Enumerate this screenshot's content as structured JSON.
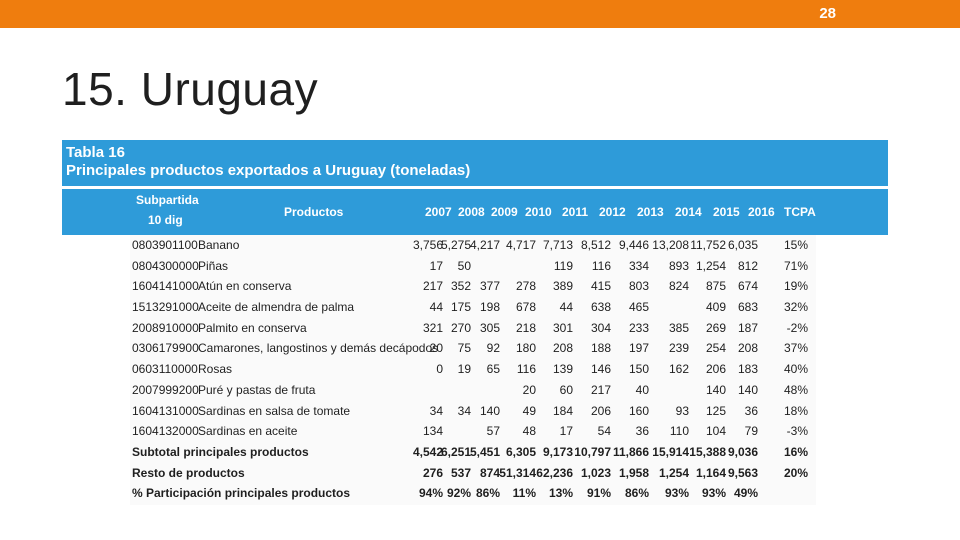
{
  "page": {
    "number": "28",
    "title": "15. Uruguay"
  },
  "table": {
    "label": "Tabla 16",
    "caption": "Principales productos exportados a Uruguay (toneladas)",
    "headers": {
      "subpartida_1": "Subpartida",
      "subpartida_2": "10 dig",
      "productos": "Productos",
      "y2007": "2007",
      "y2008": "2008",
      "y2009": "2009",
      "y2010": "2010",
      "y2011": "2011",
      "y2012": "2012",
      "y2013": "2013",
      "y2014": "2014",
      "y2015": "2015",
      "y2016": "2016",
      "tcpa": "TCPA"
    },
    "rows": [
      {
        "code": "0803901100",
        "product": "Banano",
        "values": [
          "3,756",
          "5,275",
          "4,217",
          "4,717",
          "7,713",
          "8,512",
          "9,446",
          "13,208",
          "11,752",
          "6,035"
        ],
        "tcpa": "15%"
      },
      {
        "code": "0804300000",
        "product": "Piñas",
        "values": [
          "17",
          "50",
          "",
          "",
          "119",
          "116",
          "334",
          "893",
          "1,254",
          "812"
        ],
        "tcpa": "71%"
      },
      {
        "code": "1604141000",
        "product": "Atún en conserva",
        "values": [
          "217",
          "352",
          "377",
          "278",
          "389",
          "415",
          "803",
          "824",
          "875",
          "674"
        ],
        "tcpa": "19%"
      },
      {
        "code": "1513291000",
        "product": "Aceite de almendra de palma",
        "values": [
          "44",
          "175",
          "198",
          "678",
          "44",
          "638",
          "465",
          "",
          "409",
          "683"
        ],
        "tcpa": "32%"
      },
      {
        "code": "2008910000",
        "product": "Palmito en conserva",
        "values": [
          "321",
          "270",
          "305",
          "218",
          "301",
          "304",
          "233",
          "385",
          "269",
          "187"
        ],
        "tcpa": "-2%"
      },
      {
        "code": "0306179900",
        "product": "Camarones, langostinos y demás decápodos",
        "values": [
          "20",
          "75",
          "92",
          "180",
          "208",
          "188",
          "197",
          "239",
          "254",
          "208"
        ],
        "tcpa": "37%"
      },
      {
        "code": "0603110000",
        "product": "Rosas",
        "values": [
          "0",
          "19",
          "65",
          "116",
          "139",
          "146",
          "150",
          "162",
          "206",
          "183"
        ],
        "tcpa": "40%"
      },
      {
        "code": "2007999200",
        "product": "Puré y pastas de fruta",
        "values": [
          "",
          "",
          "",
          "20",
          "60",
          "217",
          "40",
          "",
          "140",
          "140"
        ],
        "tcpa": "48%"
      },
      {
        "code": "1604131000",
        "product": "Sardinas en salsa de tomate",
        "values": [
          "34",
          "34",
          "140",
          "49",
          "184",
          "206",
          "160",
          "93",
          "125",
          "36"
        ],
        "tcpa": "18%"
      },
      {
        "code": "1604132000",
        "product": "Sardinas en aceite",
        "values": [
          "134",
          "",
          "57",
          "48",
          "17",
          "54",
          "36",
          "110",
          "104",
          "79"
        ],
        "tcpa": "-3%"
      }
    ],
    "summary": [
      {
        "label": "Subtotal principales productos",
        "values": [
          "4,542",
          "6,251",
          "5,451",
          "6,305",
          "9,173",
          "10,797",
          "11,866",
          "15,914",
          "15,388",
          "9,036"
        ],
        "tcpa": "16%"
      },
      {
        "label": "Resto de productos",
        "values": [
          "276",
          "537",
          "874",
          "51,314",
          "62,236",
          "1,023",
          "1,958",
          "1,254",
          "1,164",
          "9,563"
        ],
        "tcpa": "20%"
      },
      {
        "label": "% Participación principales productos",
        "values": [
          "94%",
          "92%",
          "86%",
          "11%",
          "13%",
          "91%",
          "86%",
          "93%",
          "93%",
          "49%"
        ],
        "tcpa": ""
      }
    ]
  }
}
